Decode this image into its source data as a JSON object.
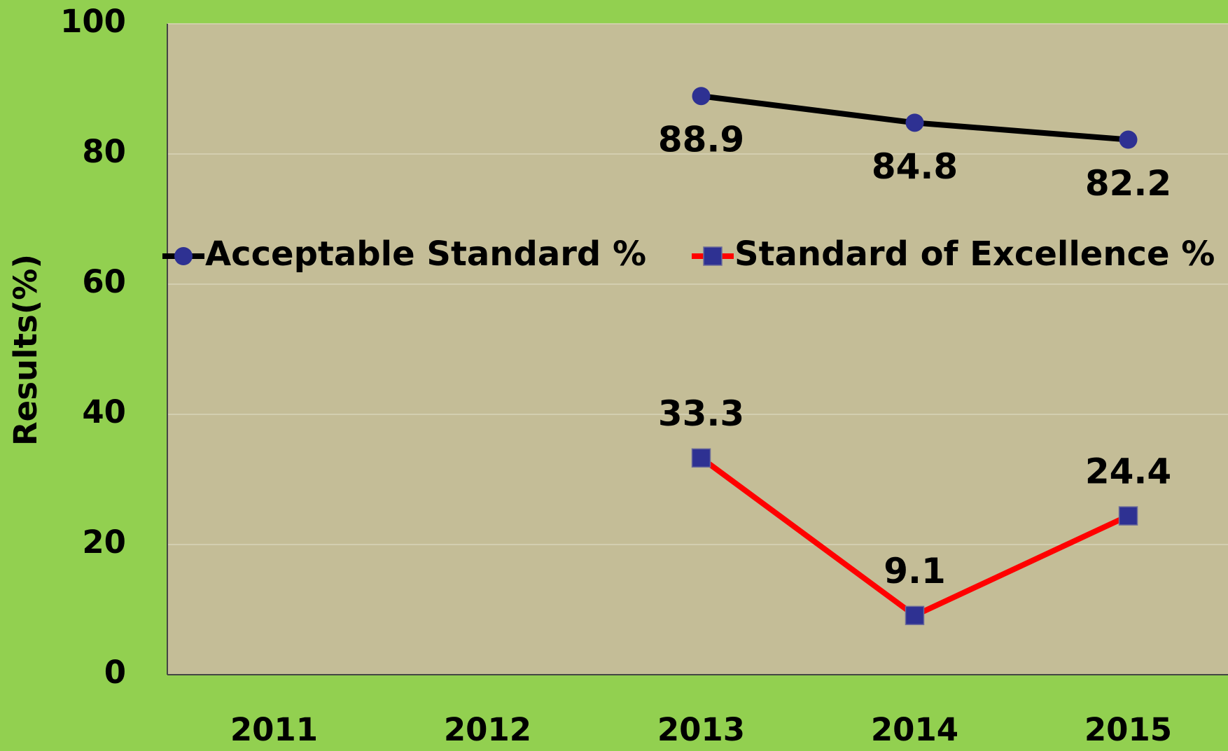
{
  "chart_data": {
    "type": "line",
    "y_label": "Results(%)",
    "categories": [
      "2011",
      "2012",
      "2013",
      "2014",
      "2015"
    ],
    "series": [
      {
        "name": "Acceptable Standard %",
        "color": "#000000",
        "marker_color": "#2e3192",
        "marker": "circle",
        "label_position": "below",
        "values": [
          null,
          null,
          88.9,
          84.8,
          82.2
        ]
      },
      {
        "name": "Standard of Excellence %",
        "color": "#ff0000",
        "marker_color": "#2e3192",
        "marker": "square",
        "label_position": "above",
        "values": [
          null,
          null,
          33.3,
          9.1,
          24.4
        ]
      }
    ],
    "ylim": [
      0,
      100
    ],
    "yticks": [
      0,
      20,
      40,
      60,
      80,
      100
    ],
    "grid": true
  }
}
